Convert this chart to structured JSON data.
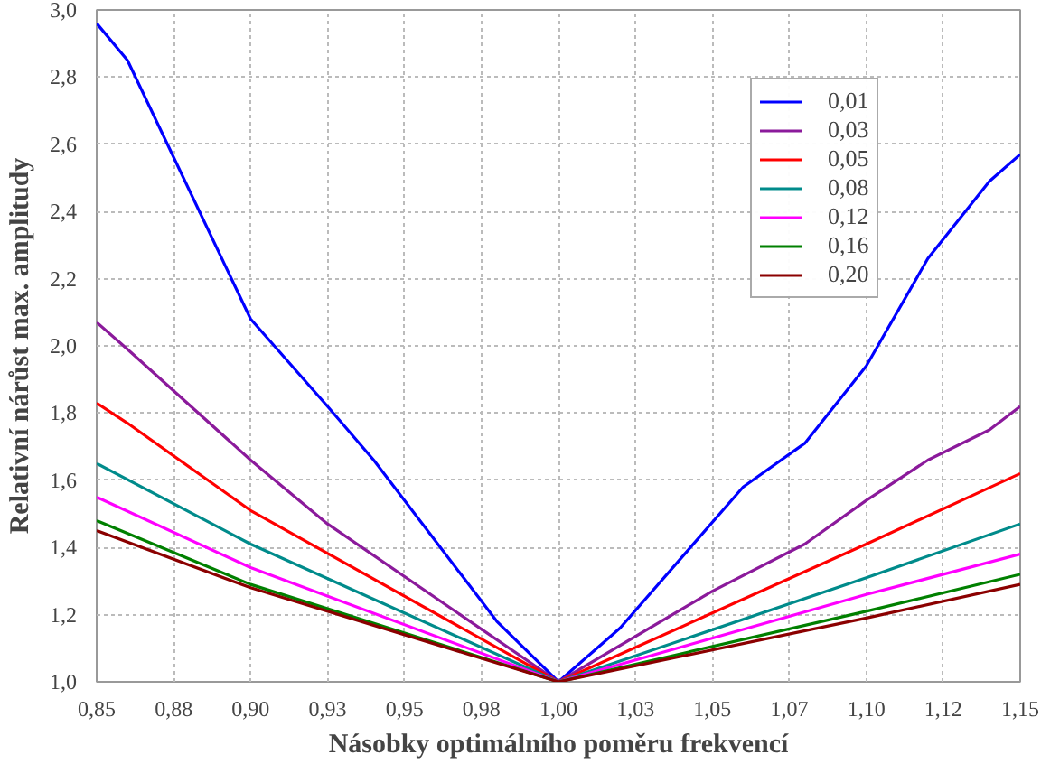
{
  "chart_data": {
    "type": "line",
    "xlabel": "Násobky optimálního poměru frekvencí",
    "ylabel": "Relativní nárůst max. amplitudy",
    "xlim": [
      0.85,
      1.15
    ],
    "ylim": [
      1.0,
      3.0
    ],
    "xticks": [
      {
        "value": 0.85,
        "label": "0,85"
      },
      {
        "value": 0.875,
        "label": "0,88"
      },
      {
        "value": 0.9,
        "label": "0,90"
      },
      {
        "value": 0.925,
        "label": "0,93"
      },
      {
        "value": 0.95,
        "label": "0,95"
      },
      {
        "value": 0.975,
        "label": "0,98"
      },
      {
        "value": 1.0,
        "label": "1,00"
      },
      {
        "value": 1.025,
        "label": "1,03"
      },
      {
        "value": 1.05,
        "label": "1,05"
      },
      {
        "value": 1.075,
        "label": "1,07"
      },
      {
        "value": 1.1,
        "label": "1,10"
      },
      {
        "value": 1.125,
        "label": "1,12"
      },
      {
        "value": 1.15,
        "label": "1,15"
      }
    ],
    "yticks": [
      {
        "value": 1.0,
        "label": "1,0"
      },
      {
        "value": 1.2,
        "label": "1,2"
      },
      {
        "value": 1.4,
        "label": "1,4"
      },
      {
        "value": 1.6,
        "label": "1,6"
      },
      {
        "value": 1.8,
        "label": "1,8"
      },
      {
        "value": 2.0,
        "label": "2,0"
      },
      {
        "value": 2.2,
        "label": "2,2"
      },
      {
        "value": 2.4,
        "label": "2,4"
      },
      {
        "value": 2.6,
        "label": "2,6"
      },
      {
        "value": 2.8,
        "label": "2,8"
      },
      {
        "value": 3.0,
        "label": "3,0"
      }
    ],
    "grid": true,
    "legend": "top right",
    "line_style": "solid",
    "series": [
      {
        "name": "0,01",
        "color": "#0000ff",
        "x": [
          0.85,
          0.86,
          0.9,
          0.925,
          0.94,
          0.98,
          1.0,
          1.02,
          1.06,
          1.08,
          1.1,
          1.12,
          1.14,
          1.15
        ],
        "values": [
          2.96,
          2.85,
          2.08,
          1.82,
          1.66,
          1.18,
          1.0,
          1.16,
          1.58,
          1.71,
          1.94,
          2.26,
          2.49,
          2.57
        ]
      },
      {
        "name": "0,03",
        "color": "#8b1a9b",
        "x": [
          0.85,
          0.86,
          0.9,
          0.925,
          1.0,
          1.05,
          1.08,
          1.1,
          1.12,
          1.14,
          1.15
        ],
        "values": [
          2.07,
          1.99,
          1.66,
          1.47,
          1.0,
          1.27,
          1.41,
          1.54,
          1.66,
          1.75,
          1.82
        ]
      },
      {
        "name": "0,05",
        "color": "#ff0000",
        "x": [
          0.85,
          0.86,
          0.9,
          1.0,
          1.1,
          1.15
        ],
        "values": [
          1.83,
          1.77,
          1.51,
          1.0,
          1.41,
          1.62
        ]
      },
      {
        "name": "0,08",
        "color": "#008b8b",
        "x": [
          0.85,
          0.9,
          1.0,
          1.1,
          1.15
        ],
        "values": [
          1.65,
          1.41,
          1.0,
          1.31,
          1.47
        ]
      },
      {
        "name": "0,12",
        "color": "#ff00ff",
        "x": [
          0.85,
          0.9,
          1.0,
          1.1,
          1.15
        ],
        "values": [
          1.55,
          1.34,
          1.0,
          1.26,
          1.38
        ]
      },
      {
        "name": "0,16",
        "color": "#008000",
        "x": [
          0.85,
          0.9,
          1.0,
          1.1,
          1.15
        ],
        "values": [
          1.48,
          1.29,
          1.0,
          1.21,
          1.32
        ]
      },
      {
        "name": "0,20",
        "color": "#8b0000",
        "x": [
          0.85,
          0.9,
          1.0,
          1.1,
          1.15
        ],
        "values": [
          1.45,
          1.28,
          1.0,
          1.19,
          1.29
        ]
      }
    ]
  }
}
